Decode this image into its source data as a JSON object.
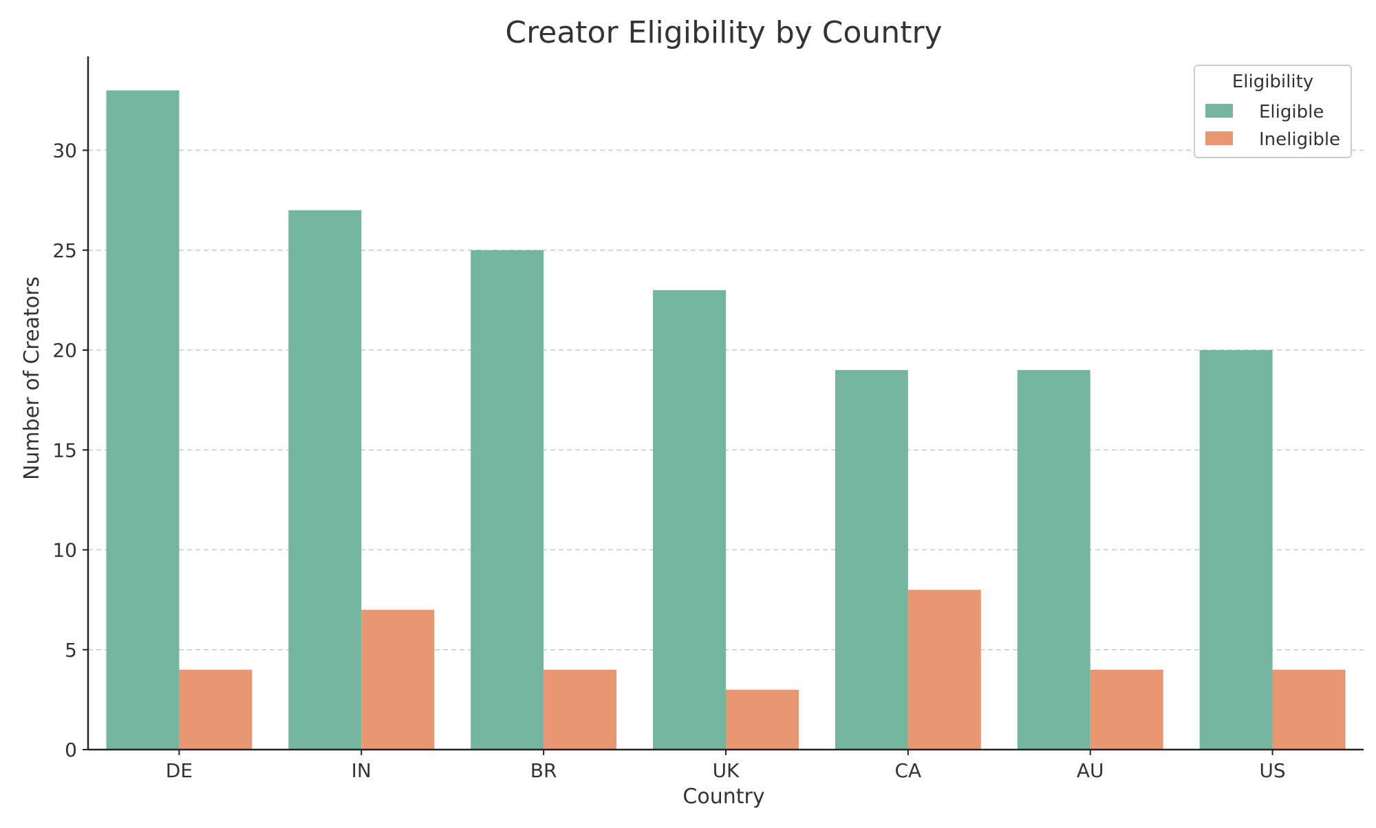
{
  "chart_data": {
    "type": "bar",
    "title": "Creator Eligibility by Country",
    "xlabel": "Country",
    "ylabel": "Number of Creators",
    "categories": [
      "DE",
      "IN",
      "BR",
      "UK",
      "CA",
      "AU",
      "US"
    ],
    "series": [
      {
        "name": "Eligible",
        "color": "#73b59f",
        "values": [
          33,
          27,
          25,
          23,
          19,
          19,
          20
        ]
      },
      {
        "name": "Ineligible",
        "color": "#e99673",
        "values": [
          4,
          7,
          4,
          3,
          8,
          4,
          4
        ]
      }
    ],
    "ylim": [
      0,
      34.7
    ],
    "yticks": [
      0,
      5,
      10,
      15,
      20,
      25,
      30
    ],
    "grid": "horizontal dashed",
    "legend": {
      "title": "Eligibility",
      "placement": "top-right"
    }
  }
}
